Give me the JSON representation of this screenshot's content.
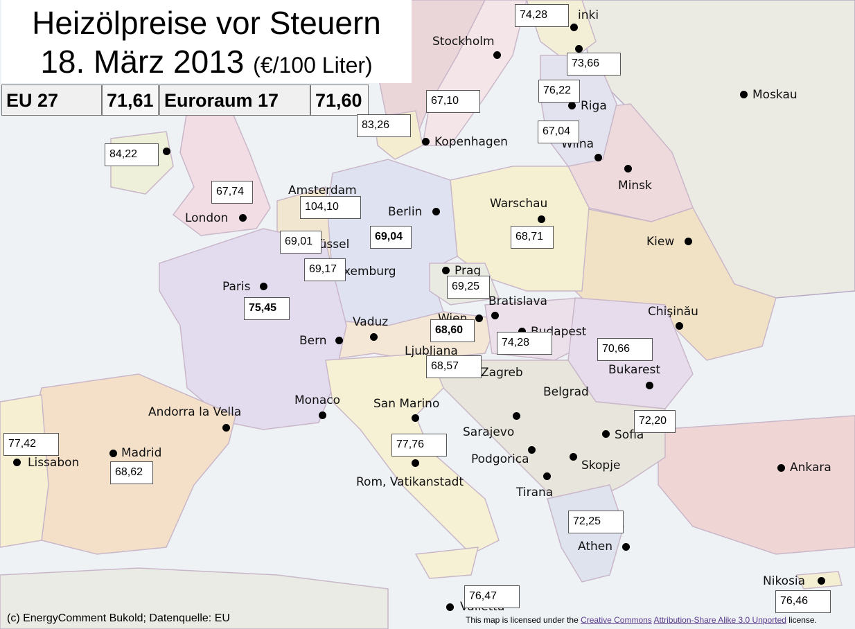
{
  "title": {
    "line1": "Heizölpreise vor Steuern",
    "line2_date": "18. März 2013",
    "line2_unit": "(€/100 Liter)"
  },
  "averages": [
    {
      "label": "EU 27",
      "value": "71,61"
    },
    {
      "label": "Euroraum 17",
      "value": "71,60"
    }
  ],
  "prices": [
    {
      "id": "finland",
      "value": "74,28",
      "bold": false
    },
    {
      "id": "estonia",
      "value": "73,66",
      "bold": false
    },
    {
      "id": "latvia",
      "value": "76,22",
      "bold": false
    },
    {
      "id": "sweden",
      "value": "67,10",
      "bold": false
    },
    {
      "id": "denmark",
      "value": "83,26",
      "bold": false
    },
    {
      "id": "lithuania",
      "value": "67,04",
      "bold": false
    },
    {
      "id": "ireland",
      "value": "84,22",
      "bold": false
    },
    {
      "id": "uk",
      "value": "67,74",
      "bold": false
    },
    {
      "id": "netherlands",
      "value": "104,10",
      "bold": false
    },
    {
      "id": "belgium",
      "value": "69,01",
      "bold": false
    },
    {
      "id": "germany",
      "value": "69,04",
      "bold": true
    },
    {
      "id": "luxembourg",
      "value": "69,17",
      "bold": false
    },
    {
      "id": "poland",
      "value": "68,71",
      "bold": false
    },
    {
      "id": "czechia",
      "value": "69,25",
      "bold": false
    },
    {
      "id": "france",
      "value": "75,45",
      "bold": true
    },
    {
      "id": "austria",
      "value": "68,60",
      "bold": true
    },
    {
      "id": "hungary",
      "value": "74,28",
      "bold": false
    },
    {
      "id": "slovenia",
      "value": "68,57",
      "bold": false
    },
    {
      "id": "romania",
      "value": "70,66",
      "bold": false
    },
    {
      "id": "bulgaria",
      "value": "72,20",
      "bold": false
    },
    {
      "id": "portugal",
      "value": "77,42",
      "bold": false
    },
    {
      "id": "spain",
      "value": "68,62",
      "bold": false
    },
    {
      "id": "italy",
      "value": "77,76",
      "bold": false
    },
    {
      "id": "greece",
      "value": "72,25",
      "bold": false
    },
    {
      "id": "malta",
      "value": "76,47",
      "bold": false
    },
    {
      "id": "cyprus",
      "value": "76,46",
      "bold": false
    }
  ],
  "cities": [
    {
      "id": "helsinki",
      "name": "inki"
    },
    {
      "id": "stockholm",
      "name": "Stockholm"
    },
    {
      "id": "moskau",
      "name": "Moskau"
    },
    {
      "id": "riga",
      "name": "Riga"
    },
    {
      "id": "kopenhagen",
      "name": "Kopenhagen"
    },
    {
      "id": "wilna",
      "name": "Wilna"
    },
    {
      "id": "minsk",
      "name": "Minsk"
    },
    {
      "id": "amsterdam",
      "name": "Amsterdam"
    },
    {
      "id": "berlin",
      "name": "Berlin"
    },
    {
      "id": "warschau",
      "name": "Warschau"
    },
    {
      "id": "london",
      "name": "London"
    },
    {
      "id": "bruessel",
      "name": "Brüssel"
    },
    {
      "id": "kiew",
      "name": "Kiew"
    },
    {
      "id": "luxemburg",
      "name": "Luxemburg"
    },
    {
      "id": "prag",
      "name": "Prag"
    },
    {
      "id": "paris",
      "name": "Paris"
    },
    {
      "id": "bratislava",
      "name": "Bratislava"
    },
    {
      "id": "chisinau",
      "name": "Chişinău"
    },
    {
      "id": "wien",
      "name": "Wien"
    },
    {
      "id": "vaduz",
      "name": "Vaduz"
    },
    {
      "id": "budapest",
      "name": "Budapest"
    },
    {
      "id": "bern",
      "name": "Bern"
    },
    {
      "id": "ljubljana",
      "name": "Ljubljana"
    },
    {
      "id": "zagreb",
      "name": "Zagreb"
    },
    {
      "id": "bukarest",
      "name": "Bukarest"
    },
    {
      "id": "belgrad",
      "name": "Belgrad"
    },
    {
      "id": "monaco",
      "name": "Monaco"
    },
    {
      "id": "sanmarino",
      "name": "San Marino"
    },
    {
      "id": "andorra",
      "name": "Andorra la Vella"
    },
    {
      "id": "sarajevo",
      "name": "Sarajevo"
    },
    {
      "id": "sofia",
      "name": "Sofia"
    },
    {
      "id": "madrid",
      "name": "Madrid"
    },
    {
      "id": "lissabon",
      "name": "Lissabon"
    },
    {
      "id": "podgorica",
      "name": "Podgorica"
    },
    {
      "id": "skopje",
      "name": "Skopje"
    },
    {
      "id": "ankara",
      "name": "Ankara"
    },
    {
      "id": "rom",
      "name": "Rom, Vatikanstadt"
    },
    {
      "id": "tirana",
      "name": "Tirana"
    },
    {
      "id": "athen",
      "name": "Athen"
    },
    {
      "id": "nikosia",
      "name": "Nikosia"
    },
    {
      "id": "valletta",
      "name": "Valletta"
    }
  ],
  "credit": "(c) EnergyComment Bukold; Datenquelle: EU",
  "license": {
    "prefix": "This map is licensed under the ",
    "link1": "Creative Commons",
    "link2": "Attribution-Share Alike 3.0 Unported",
    "suffix": " license."
  },
  "colors": {
    "sea": "#eef1f4",
    "land_outside": "#e6e9e4",
    "box_border": "#555555"
  }
}
